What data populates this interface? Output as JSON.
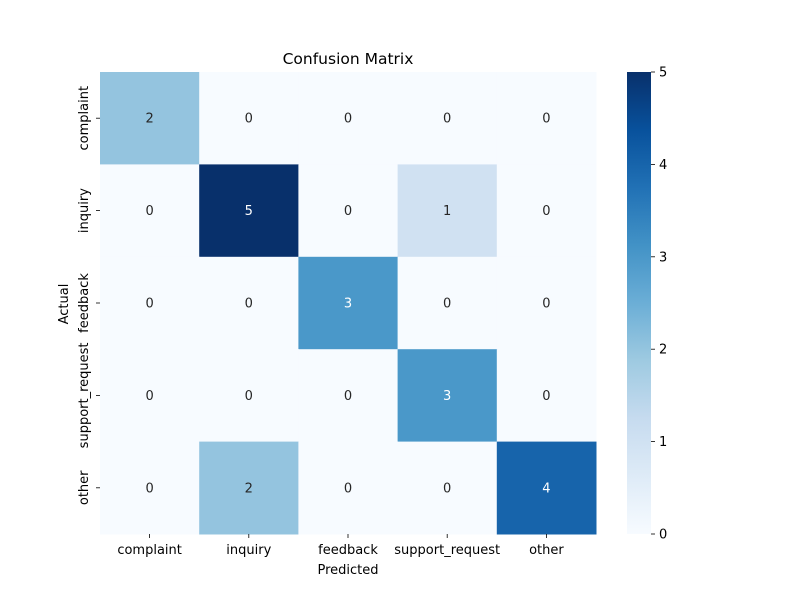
{
  "chart_data": {
    "type": "heatmap",
    "title": "Confusion Matrix",
    "xlabel": "Predicted",
    "ylabel": "Actual",
    "x_categories": [
      "complaint",
      "inquiry",
      "feedback",
      "support_request",
      "other"
    ],
    "y_categories": [
      "complaint",
      "inquiry",
      "feedback",
      "support_request",
      "other"
    ],
    "values": [
      [
        2,
        0,
        0,
        0,
        0
      ],
      [
        0,
        5,
        0,
        1,
        0
      ],
      [
        0,
        0,
        3,
        0,
        0
      ],
      [
        0,
        0,
        0,
        3,
        0
      ],
      [
        0,
        2,
        0,
        0,
        4
      ]
    ],
    "colorbar": {
      "range": [
        0,
        5
      ],
      "ticks": [
        "0",
        "1",
        "2",
        "3",
        "4",
        "5"
      ]
    },
    "colormap": "Blues",
    "colors": [
      "#f7fbff",
      "#deebf7",
      "#c6dbef",
      "#9ecae1",
      "#6baed6",
      "#4292c6",
      "#2171b5",
      "#08519c",
      "#08306b"
    ]
  }
}
